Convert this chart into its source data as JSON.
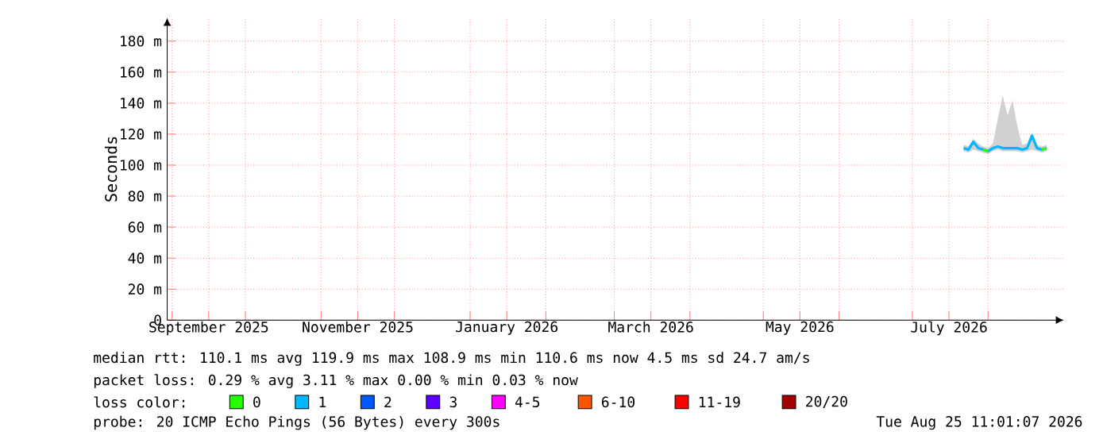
{
  "chart_data": {
    "type": "line",
    "ylabel": "Seconds",
    "legend_title": "loss color:",
    "legend": "bottom",
    "grid": true,
    "xlim": [
      "2025-08-30",
      "2026-09-01"
    ],
    "ylim": [
      0,
      195
    ],
    "xticks": [
      {
        "value": "2025-09-01",
        "label": null
      },
      {
        "value": "2025-09-16",
        "label": "September 2025"
      },
      {
        "value": "2025-10-01",
        "label": null
      },
      {
        "value": "2025-11-01",
        "label": null
      },
      {
        "value": "2025-11-16",
        "label": "November 2025"
      },
      {
        "value": "2025-12-01",
        "label": null
      },
      {
        "value": "2026-01-01",
        "label": null
      },
      {
        "value": "2026-01-16",
        "label": "January 2026"
      },
      {
        "value": "2026-02-01",
        "label": null
      },
      {
        "value": "2026-03-01",
        "label": null
      },
      {
        "value": "2026-03-16",
        "label": "March 2026"
      },
      {
        "value": "2026-04-01",
        "label": null
      },
      {
        "value": "2026-05-01",
        "label": null
      },
      {
        "value": "2026-05-16",
        "label": "May 2026"
      },
      {
        "value": "2026-06-01",
        "label": null
      },
      {
        "value": "2026-07-01",
        "label": null
      },
      {
        "value": "2026-07-16",
        "label": "July 2026"
      },
      {
        "value": "2026-08-01",
        "label": null
      }
    ],
    "yticks": [
      0,
      {
        "value": 20,
        "label": "20 m"
      },
      {
        "value": 40,
        "label": "40 m"
      },
      {
        "value": 60,
        "label": "60 m"
      },
      {
        "value": 80,
        "label": "80 m"
      },
      {
        "value": 100,
        "label": "100 m"
      },
      {
        "value": 120,
        "label": "120 m"
      },
      {
        "value": 140,
        "label": "140 m"
      },
      {
        "value": 160,
        "label": "160 m"
      },
      {
        "value": 180,
        "label": "180 m"
      }
    ],
    "x": [
      "2026-07-22",
      "2026-07-24",
      "2026-07-26",
      "2026-07-28",
      "2026-07-30",
      "2026-08-01",
      "2026-08-03",
      "2026-08-05",
      "2026-08-07",
      "2026-08-09",
      "2026-08-11",
      "2026-08-13",
      "2026-08-15",
      "2026-08-17",
      "2026-08-19",
      "2026-08-21",
      "2026-08-23",
      "2026-08-25"
    ],
    "series": [
      {
        "name": "0",
        "color": "#26ff00",
        "values": [
          null,
          null,
          null,
          null,
          110,
          109,
          null,
          null,
          null,
          null,
          null,
          null,
          null,
          null,
          null,
          null,
          110,
          111
        ]
      },
      {
        "name": "1",
        "color": "#00b8ff",
        "values": [
          111,
          110,
          115,
          111,
          110,
          109,
          111,
          112,
          111,
          111,
          111,
          111,
          110,
          111,
          119,
          111,
          110,
          111
        ],
        "lower": [
          109,
          108,
          110,
          109,
          108,
          107,
          109,
          110,
          109,
          109,
          109,
          109,
          108,
          109,
          110,
          109,
          108,
          109
        ],
        "upper": [
          113,
          112,
          117,
          114,
          112,
          111,
          114,
          130,
          145,
          132,
          142,
          125,
          113,
          114,
          121,
          113,
          112,
          113
        ]
      },
      {
        "name": "2",
        "color": "#0059ff",
        "values": [
          null,
          null,
          null,
          null,
          null,
          null,
          null,
          null,
          null,
          null,
          null,
          null,
          null,
          null,
          null,
          null,
          null,
          null
        ]
      },
      {
        "name": "3",
        "color": "#5e00ff",
        "values": [
          null,
          null,
          null,
          null,
          null,
          null,
          null,
          null,
          null,
          null,
          null,
          null,
          null,
          null,
          null,
          null,
          null,
          null
        ]
      },
      {
        "name": "4-5",
        "color": "#ff00ff",
        "values": [
          null,
          null,
          null,
          null,
          null,
          null,
          null,
          null,
          null,
          null,
          null,
          null,
          null,
          null,
          null,
          null,
          null,
          null
        ]
      },
      {
        "name": "6-10",
        "color": "#ff5500",
        "values": [
          null,
          null,
          null,
          null,
          null,
          null,
          null,
          null,
          null,
          null,
          null,
          null,
          null,
          null,
          null,
          null,
          null,
          null
        ]
      },
      {
        "name": "11-19",
        "color": "#ff0000",
        "values": [
          null,
          null,
          null,
          null,
          null,
          null,
          null,
          null,
          null,
          null,
          null,
          null,
          null,
          null,
          null,
          null,
          null,
          null
        ]
      },
      {
        "name": "20/20",
        "color": "#a10000",
        "values": [
          null,
          null,
          null,
          null,
          null,
          null,
          null,
          null,
          null,
          null,
          null,
          null,
          null,
          null,
          null,
          null,
          null,
          null
        ]
      }
    ],
    "annotations": [
      "median rtt:  110.1 ms avg  119.9 ms max  108.9 ms min  110.6 ms now  4.5 ms sd  24.7   am/s",
      "packet loss: 0.29 % avg  3.11 % max  0.00 % min  0.03 % now",
      "probe:       20 ICMP Echo Pings (56 Bytes) every 300s",
      "Tue Aug 25 11:01:07 2026"
    ]
  }
}
